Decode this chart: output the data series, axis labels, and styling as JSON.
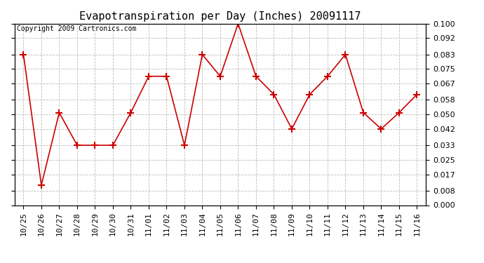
{
  "title": "Evapotranspiration per Day (Inches) 20091117",
  "copyright_text": "Copyright 2009 Cartronics.com",
  "x_labels": [
    "10/25",
    "10/26",
    "10/27",
    "10/28",
    "10/29",
    "10/30",
    "10/31",
    "11/01",
    "11/02",
    "11/03",
    "11/04",
    "11/05",
    "11/06",
    "11/07",
    "11/08",
    "11/09",
    "11/10",
    "11/11",
    "11/12",
    "11/13",
    "11/14",
    "11/15",
    "11/16"
  ],
  "y_values": [
    0.083,
    0.011,
    0.051,
    0.033,
    0.033,
    0.033,
    0.051,
    0.071,
    0.071,
    0.033,
    0.083,
    0.071,
    0.1,
    0.071,
    0.061,
    0.042,
    0.061,
    0.071,
    0.083,
    0.051,
    0.042,
    0.051,
    0.061
  ],
  "y_ticks": [
    0.0,
    0.008,
    0.017,
    0.025,
    0.033,
    0.042,
    0.05,
    0.058,
    0.067,
    0.075,
    0.083,
    0.092,
    0.1
  ],
  "line_color": "#cc0000",
  "marker": "+",
  "marker_size": 7,
  "marker_color": "#cc0000",
  "bg_color": "#ffffff",
  "grid_color": "#bbbbbb",
  "ylim": [
    0.0,
    0.1
  ],
  "title_fontsize": 11,
  "tick_fontsize": 8,
  "copyright_fontsize": 7,
  "figsize": [
    6.9,
    3.75
  ],
  "dpi": 100
}
